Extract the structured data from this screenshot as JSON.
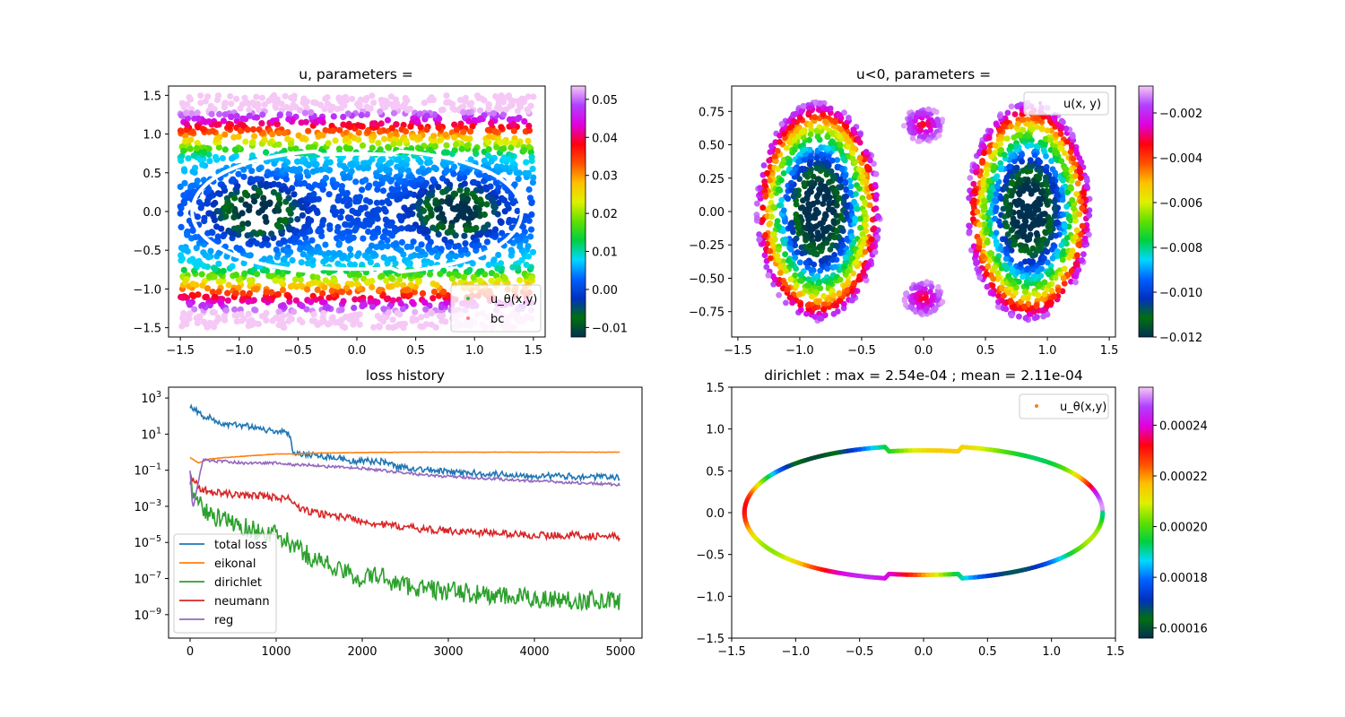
{
  "colormap": [
    "#003050",
    "#007010",
    "#0030c0",
    "#0060ff",
    "#00d8ff",
    "#00d040",
    "#60e000",
    "#e0f000",
    "#ffc000",
    "#ff5000",
    "#ff0010",
    "#e000e0",
    "#b040ff",
    "#f6c8f6"
  ],
  "chart_data": [
    {
      "type": "scatter",
      "title": "u, parameters =",
      "xlim": [
        -1.6,
        1.6
      ],
      "ylim": [
        -1.62,
        1.62
      ],
      "xticks": [
        "-1.5",
        "-1.0",
        "-0.5",
        "0.0",
        "0.5",
        "1.0",
        "1.5"
      ],
      "yticks": [
        "-1.5",
        "-1.0",
        "-0.5",
        "0.0",
        "0.5",
        "1.0",
        "1.5"
      ],
      "colorbar": {
        "range": [
          -0.0125,
          0.0535
        ],
        "ticks": [
          "-0.01",
          "0.00",
          "0.01",
          "0.02",
          "0.03",
          "0.04",
          "0.05"
        ]
      },
      "legend": [
        "u_θ(x,y)",
        "bc"
      ],
      "legend_colors": [
        "#20d020",
        "#ff8080"
      ],
      "legend_position": "lower right",
      "boundary_color": "#ffffff",
      "grid": false
    },
    {
      "type": "scatter",
      "title": "u<0, parameters =",
      "xlim": [
        -1.55,
        1.55
      ],
      "ylim": [
        -0.94,
        0.94
      ],
      "xticks": [
        "-1.5",
        "-1.0",
        "-0.5",
        "0.0",
        "0.5",
        "1.0",
        "1.5"
      ],
      "yticks": [
        "-0.75",
        "-0.50",
        "-0.25",
        "0.00",
        "0.25",
        "0.50",
        "0.75"
      ],
      "colorbar": {
        "range": [
          -0.012,
          -0.0008
        ],
        "ticks": [
          "-0.012",
          "-0.010",
          "-0.008",
          "-0.006",
          "-0.004",
          "-0.002"
        ]
      },
      "legend": [
        "u(x, y)"
      ],
      "legend_position": "upper right",
      "grid": false
    },
    {
      "type": "line",
      "title": "loss history",
      "yscale": "log",
      "xlim": [
        -250,
        5250
      ],
      "ylim_log10": [
        -10.3,
        3.6
      ],
      "xticks": [
        "0",
        "1000",
        "2000",
        "3000",
        "4000",
        "5000"
      ],
      "yticks": [
        "10^-9",
        "10^-7",
        "10^-5",
        "10^-3",
        "10^-1",
        "10^1",
        "10^3"
      ],
      "legend_position": "lower left",
      "grid": false,
      "series": [
        {
          "name": "total loss",
          "color": "#1f77b4",
          "x": [
            0,
            150,
            230,
            400,
            600,
            780,
            900,
            1000,
            1150,
            1200,
            1350,
            1500,
            1700,
            1900,
            2100,
            2200,
            2300,
            2400,
            2600,
            3000,
            3500,
            4000,
            4500,
            5000
          ],
          "log10_y": [
            2.6,
            2.0,
            1.9,
            1.5,
            1.5,
            1.4,
            1.2,
            1.2,
            1.0,
            0.0,
            -0.1,
            -0.2,
            -0.3,
            -0.5,
            -0.5,
            -0.5,
            -0.6,
            -0.8,
            -0.9,
            -1.1,
            -1.2,
            -1.3,
            -1.35,
            -1.4
          ]
        },
        {
          "name": "eikonal",
          "color": "#ff7f0e",
          "x": [
            0,
            100,
            200,
            400,
            700,
            1000,
            1200,
            1500,
            2000,
            2500,
            3000,
            3500,
            4000,
            4500,
            5000
          ],
          "log10_y": [
            -0.3,
            -0.6,
            -0.4,
            -0.3,
            -0.2,
            -0.1,
            -0.1,
            -0.05,
            -0.02,
            0.0,
            0.0,
            0.0,
            0.0,
            0.0,
            0.0
          ]
        },
        {
          "name": "dirichlet",
          "color": "#2ca02c",
          "x": [
            0,
            100,
            230,
            400,
            600,
            800,
            1000,
            1200,
            1400,
            1600,
            1800,
            2000,
            2200,
            2400,
            2800,
            3200,
            3600,
            4000,
            4500,
            5000
          ],
          "log10_y": [
            -1.6,
            -2.8,
            -3.5,
            -3.8,
            -4.1,
            -4.4,
            -4.6,
            -5.2,
            -5.8,
            -6.2,
            -6.7,
            -7.0,
            -6.8,
            -7.3,
            -7.6,
            -7.8,
            -8.0,
            -8.1,
            -8.2,
            -8.2
          ]
        },
        {
          "name": "neumann",
          "color": "#d62728",
          "x": [
            0,
            100,
            230,
            400,
            600,
            800,
            1000,
            1150,
            1300,
            1500,
            1800,
            2000,
            2200,
            2400,
            2800,
            3200,
            3600,
            4000,
            4500,
            5000
          ],
          "log10_y": [
            -1.2,
            -2.0,
            -2.2,
            -2.3,
            -2.4,
            -2.4,
            -2.5,
            -2.6,
            -3.2,
            -3.4,
            -3.6,
            -3.8,
            -4.0,
            -4.1,
            -4.3,
            -4.4,
            -4.5,
            -4.6,
            -4.6,
            -4.7
          ]
        },
        {
          "name": "reg",
          "color": "#9467bd",
          "x": [
            0,
            30,
            150,
            230,
            400,
            600,
            800,
            1000,
            1200,
            1400,
            1600,
            2000,
            2400,
            2800,
            3200,
            3600,
            4000,
            4500,
            5000
          ],
          "log10_y": [
            -1.0,
            -3.2,
            -0.4,
            -0.5,
            -0.5,
            -0.6,
            -0.6,
            -0.6,
            -0.7,
            -0.7,
            -0.8,
            -0.9,
            -1.1,
            -1.3,
            -1.4,
            -1.5,
            -1.6,
            -1.7,
            -1.8
          ]
        }
      ]
    },
    {
      "type": "scatter",
      "title": "dirichlet : max = 2.54e-04 ; mean = 2.11e-04",
      "xlim": [
        -1.5,
        1.5
      ],
      "ylim": [
        -1.5,
        1.5
      ],
      "xticks": [
        "-1.5",
        "-1.0",
        "-0.5",
        "0.0",
        "0.5",
        "1.0",
        "1.5"
      ],
      "yticks": [
        "-1.5",
        "-1.0",
        "-0.5",
        "0.0",
        "0.5",
        "1.0",
        "1.5"
      ],
      "colorbar": {
        "range": [
          0.000156,
          0.000255
        ],
        "ticks": [
          "0.00016",
          "0.00018",
          "0.00020",
          "0.00022",
          "0.00024"
        ]
      },
      "legend": [
        "u_θ(x,y)"
      ],
      "legend_colors": [
        "#ff7f0e"
      ],
      "legend_position": "upper right",
      "grid": false
    }
  ]
}
